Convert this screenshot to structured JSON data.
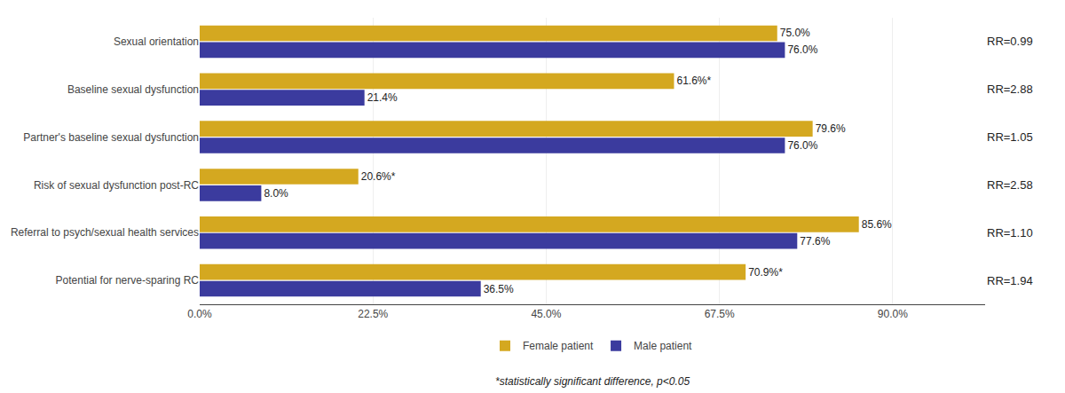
{
  "chart_data": {
    "type": "bar",
    "orientation": "horizontal",
    "categories": [
      "Sexual orientation",
      "Baseline sexual dysfunction",
      "Partner's baseline sexual dysfunction",
      "Risk of sexual dysfunction post-RC",
      "Referral to psych/sexual health services",
      "Potential for nerve-sparing RC"
    ],
    "series": [
      {
        "name": "Female patient",
        "color": "#D4A820",
        "values": [
          75.0,
          61.6,
          79.6,
          20.6,
          85.6,
          70.9
        ],
        "value_labels": [
          "75.0%",
          "61.6%*",
          "79.6%",
          "20.6%*",
          "85.6%",
          "70.9%*"
        ]
      },
      {
        "name": "Male patient",
        "color": "#3B3B9E",
        "values": [
          76.0,
          21.4,
          76.0,
          8.0,
          77.6,
          36.5
        ],
        "value_labels": [
          "76.0%",
          "21.4%",
          "76.0%",
          "8.0%",
          "77.6%",
          "36.5%"
        ]
      }
    ],
    "annotations": [
      {
        "text": "RR=0.99",
        "category": "Sexual orientation"
      },
      {
        "text": "RR=2.88",
        "category": "Baseline sexual dysfunction"
      },
      {
        "text": "RR=1.05",
        "category": "Partner's baseline sexual dysfunction"
      },
      {
        "text": "RR=2.58",
        "category": "Risk of sexual dysfunction post-RC"
      },
      {
        "text": "RR=1.10",
        "category": "Referral to psych/sexual health services"
      },
      {
        "text": "RR=1.94",
        "category": "Potential for nerve-sparing RC"
      }
    ],
    "footnote": "*statistically significant difference, p<0.05",
    "xlim": [
      0,
      102
    ],
    "xticks": [
      {
        "value": 0,
        "label": "0.0%"
      },
      {
        "value": 22.5,
        "label": "22.5%"
      },
      {
        "value": 45.0,
        "label": "45.0%"
      },
      {
        "value": 67.5,
        "label": "67.5%"
      },
      {
        "value": 90.0,
        "label": "90.0%"
      }
    ],
    "grid": true,
    "legend": "bottom",
    "data_labels": true
  }
}
